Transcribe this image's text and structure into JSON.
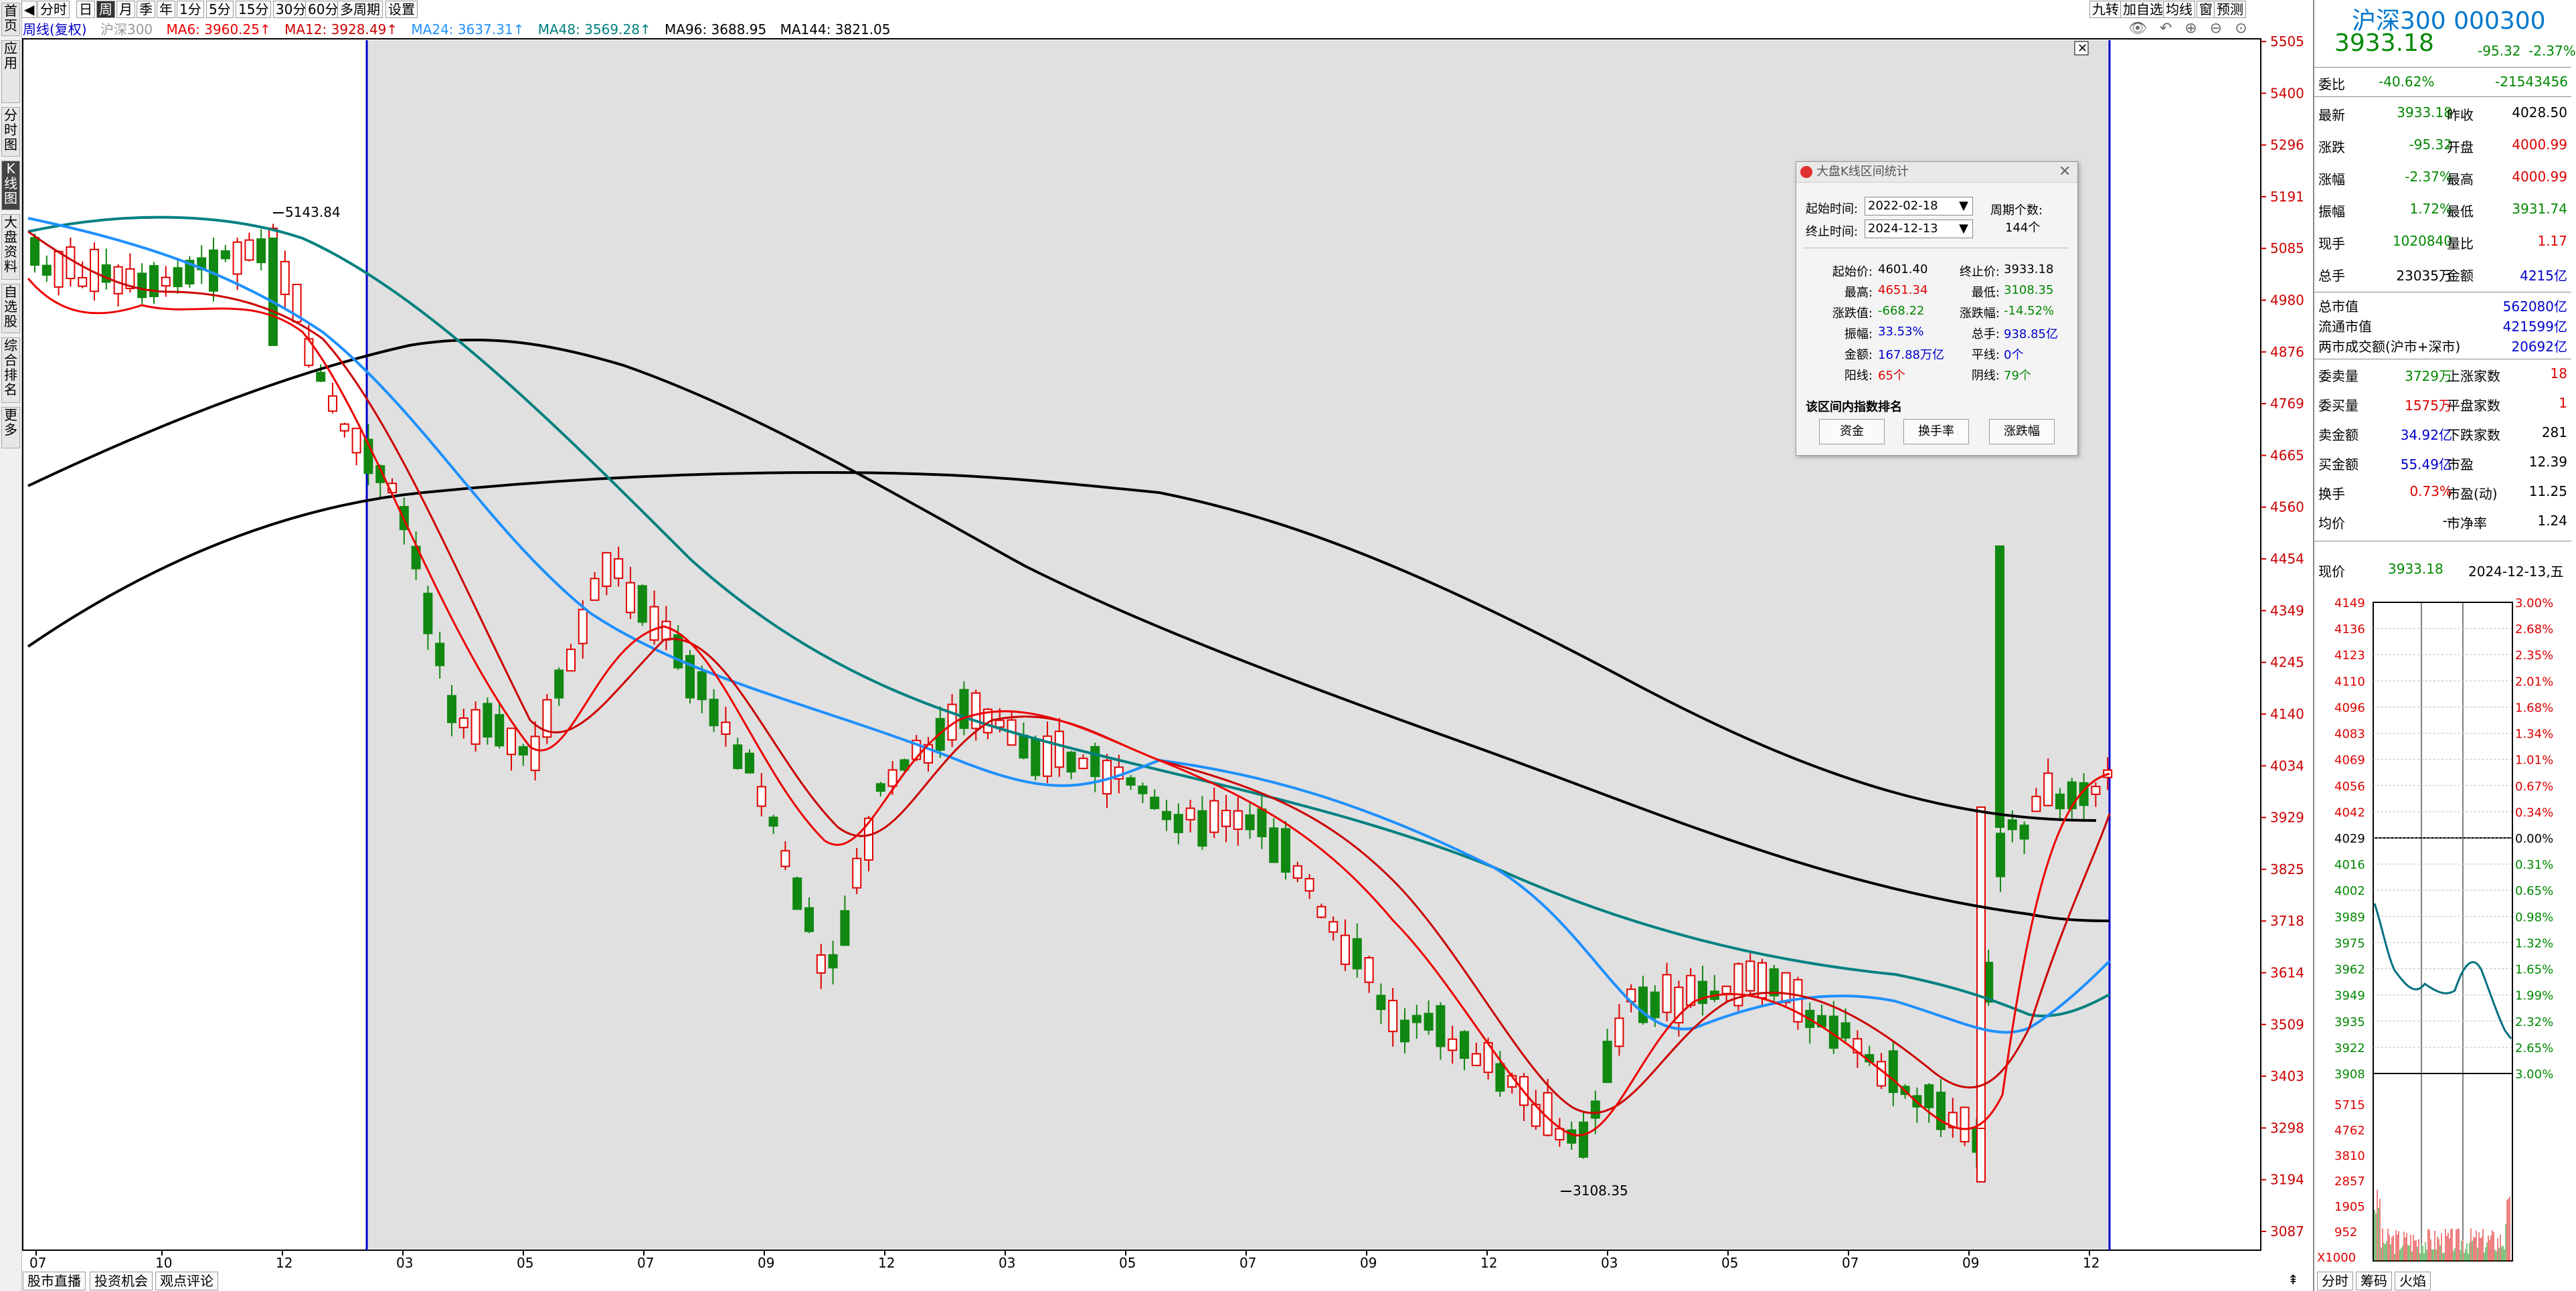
{
  "left_nav": [
    "首页",
    "应用",
    "分时图",
    "K线图",
    "大盘资料",
    "自选股",
    "综合排名",
    "更多"
  ],
  "toolbar": {
    "periods": [
      "分时",
      "日",
      "周",
      "月",
      "季",
      "年",
      "1分",
      "5分",
      "15分",
      "30分",
      "60分",
      "多周期",
      "设置"
    ],
    "active": "周",
    "right_tools": [
      "九转",
      "加自选",
      "均线",
      "窗",
      "预测"
    ]
  },
  "ma_line": {
    "label": "周线(复权)",
    "index": "沪深300",
    "items": [
      {
        "text": "MA6: 3960.25↑",
        "color": "#ee0000"
      },
      {
        "text": "MA12: 3928.49↑",
        "color": "#cc0000"
      },
      {
        "text": "MA24: 3637.31↑",
        "color": "#1e90ff"
      },
      {
        "text": "MA48: 3569.28↑",
        "color": "#008080"
      },
      {
        "text": "MA96: 3688.95",
        "color": "#000000"
      },
      {
        "text": "MA144: 3821.05",
        "color": "#000000"
      }
    ]
  },
  "price_axis": [
    "5505",
    "5400",
    "5296",
    "5191",
    "5085",
    "4980",
    "4876",
    "4769",
    "4665",
    "4560",
    "4454",
    "4349",
    "4245",
    "4140",
    "4034",
    "3929",
    "3825",
    "3718",
    "3614",
    "3509",
    "3403",
    "3298",
    "3194",
    "3087"
  ],
  "time_axis": [
    "07",
    "10",
    "12",
    "03",
    "05",
    "07",
    "09",
    "12",
    "03",
    "05",
    "07",
    "09",
    "12",
    "03",
    "05",
    "07",
    "09",
    "12"
  ],
  "annotations": {
    "high": "5143.84",
    "low": "3108.35"
  },
  "dialog": {
    "title": "大盘K线区间统计",
    "start_label": "起始时间:",
    "start_value": "2022-02-18",
    "end_label": "终止时间:",
    "end_value": "2024-12-13",
    "period_count_label": "周期个数:",
    "period_count_value": "144个",
    "stats": [
      {
        "l": "起始价:",
        "v": "4601.40",
        "c": "#000",
        "l2": "终止价:",
        "v2": "3933.18",
        "c2": "#000"
      },
      {
        "l": "最高:",
        "v": "4651.34",
        "c": "#dd0000",
        "l2": "最低:",
        "v2": "3108.35",
        "c2": "#008800"
      },
      {
        "l": "涨跌值:",
        "v": "-668.22",
        "c": "#008800",
        "l2": "涨跌幅:",
        "v2": "-14.52%",
        "c2": "#008800"
      },
      {
        "l": "振幅:",
        "v": "33.53%",
        "c": "#0000cc",
        "l2": "总手:",
        "v2": "938.85亿",
        "c2": "#0000cc"
      },
      {
        "l": "金额:",
        "v": "167.88万亿",
        "c": "#0000cc",
        "l2": "平线:",
        "v2": "0个",
        "c2": "#0000cc"
      },
      {
        "l": "阳线:",
        "v": "65个",
        "c": "#dd0000",
        "l2": "阴线:",
        "v2": "79个",
        "c2": "#008800"
      }
    ],
    "rank_label": "该区间内指数排名",
    "buttons": [
      "资金",
      "换手率",
      "涨跌幅"
    ]
  },
  "quote": {
    "name": "沪深300 000300",
    "price": "3933.18",
    "change": "-95.32",
    "pct": "-2.37%",
    "weibi_label": "委比",
    "weibi_pct": "-40.62%",
    "weibi_val": "-21543456",
    "rows": [
      {
        "l": "最新",
        "v": "3933.18",
        "c": "#008800",
        "l2": "昨收",
        "v2": "4028.50",
        "c2": "#000"
      },
      {
        "l": "涨跌",
        "v": "-95.32",
        "c": "#008800",
        "l2": "开盘",
        "v2": "4000.99",
        "c2": "#dd0000"
      },
      {
        "l": "涨幅",
        "v": "-2.37%",
        "c": "#008800",
        "l2": "最高",
        "v2": "4000.99",
        "c2": "#dd0000"
      },
      {
        "l": "振幅",
        "v": "1.72%",
        "c": "#008800",
        "l2": "最低",
        "v2": "3931.74",
        "c2": "#008800"
      },
      {
        "l": "现手",
        "v": "1020840",
        "c": "#008800",
        "l2": "量比",
        "v2": "1.17",
        "c2": "#dd0000"
      },
      {
        "l": "总手",
        "v": "23035万",
        "c": "#000",
        "l2": "金额",
        "v2": "4215亿",
        "c2": "#0000cc"
      }
    ],
    "cap_rows": [
      {
        "l": "总市值",
        "v": "562080亿"
      },
      {
        "l": "流通市值",
        "v": "421599亿"
      },
      {
        "l": "两市成交额(沪市+深市)",
        "v": "20692亿"
      }
    ],
    "rows2": [
      {
        "l": "委卖量",
        "v": "3729万",
        "c": "#008800",
        "l2": "上涨家数",
        "v2": "18",
        "c2": "#dd0000"
      },
      {
        "l": "委买量",
        "v": "1575万",
        "c": "#dd0000",
        "l2": "平盘家数",
        "v2": "1",
        "c2": "#dd0000"
      },
      {
        "l": "卖金额",
        "v": "34.92亿",
        "c": "#0000cc",
        "l2": "下跌家数",
        "v2": "281",
        "c2": "#000"
      },
      {
        "l": "买金额",
        "v": "55.49亿",
        "c": "#0000cc",
        "l2": "市盈",
        "v2": "12.39",
        "c2": "#000"
      },
      {
        "l": "换手",
        "v": "0.73%",
        "c": "#dd0000",
        "l2": "市盈(动)",
        "v2": "11.25",
        "c2": "#000"
      },
      {
        "l": "均价",
        "v": "--",
        "c": "#000",
        "l2": "市净率",
        "v2": "1.24",
        "c2": "#000"
      }
    ],
    "now_label": "现价",
    "now_val": "3933.18",
    "now_date": "2024-12-13,五"
  },
  "mini_chart": {
    "left_axis": [
      "4149",
      "4136",
      "4123",
      "4110",
      "4096",
      "4083",
      "4069",
      "4056",
      "4042",
      "4029",
      "4016",
      "4002",
      "3989",
      "3975",
      "3962",
      "3949",
      "3935",
      "3922",
      "3908"
    ],
    "right_axis": [
      "3.00%",
      "2.68%",
      "2.35%",
      "2.01%",
      "1.68%",
      "1.34%",
      "1.01%",
      "0.67%",
      "0.34%",
      "0.00%",
      "0.31%",
      "0.65%",
      "0.98%",
      "1.32%",
      "1.65%",
      "1.99%",
      "2.32%",
      "2.65%",
      "3.00%"
    ],
    "vol_axis": [
      "5715",
      "4762",
      "3810",
      "2857",
      "1905",
      "952",
      "X1000"
    ]
  },
  "bottom_tabs": [
    "股市直播",
    "投资机会",
    "观点评论"
  ],
  "right_bottom_tabs": [
    "分时",
    "筹码",
    "火焰"
  ]
}
